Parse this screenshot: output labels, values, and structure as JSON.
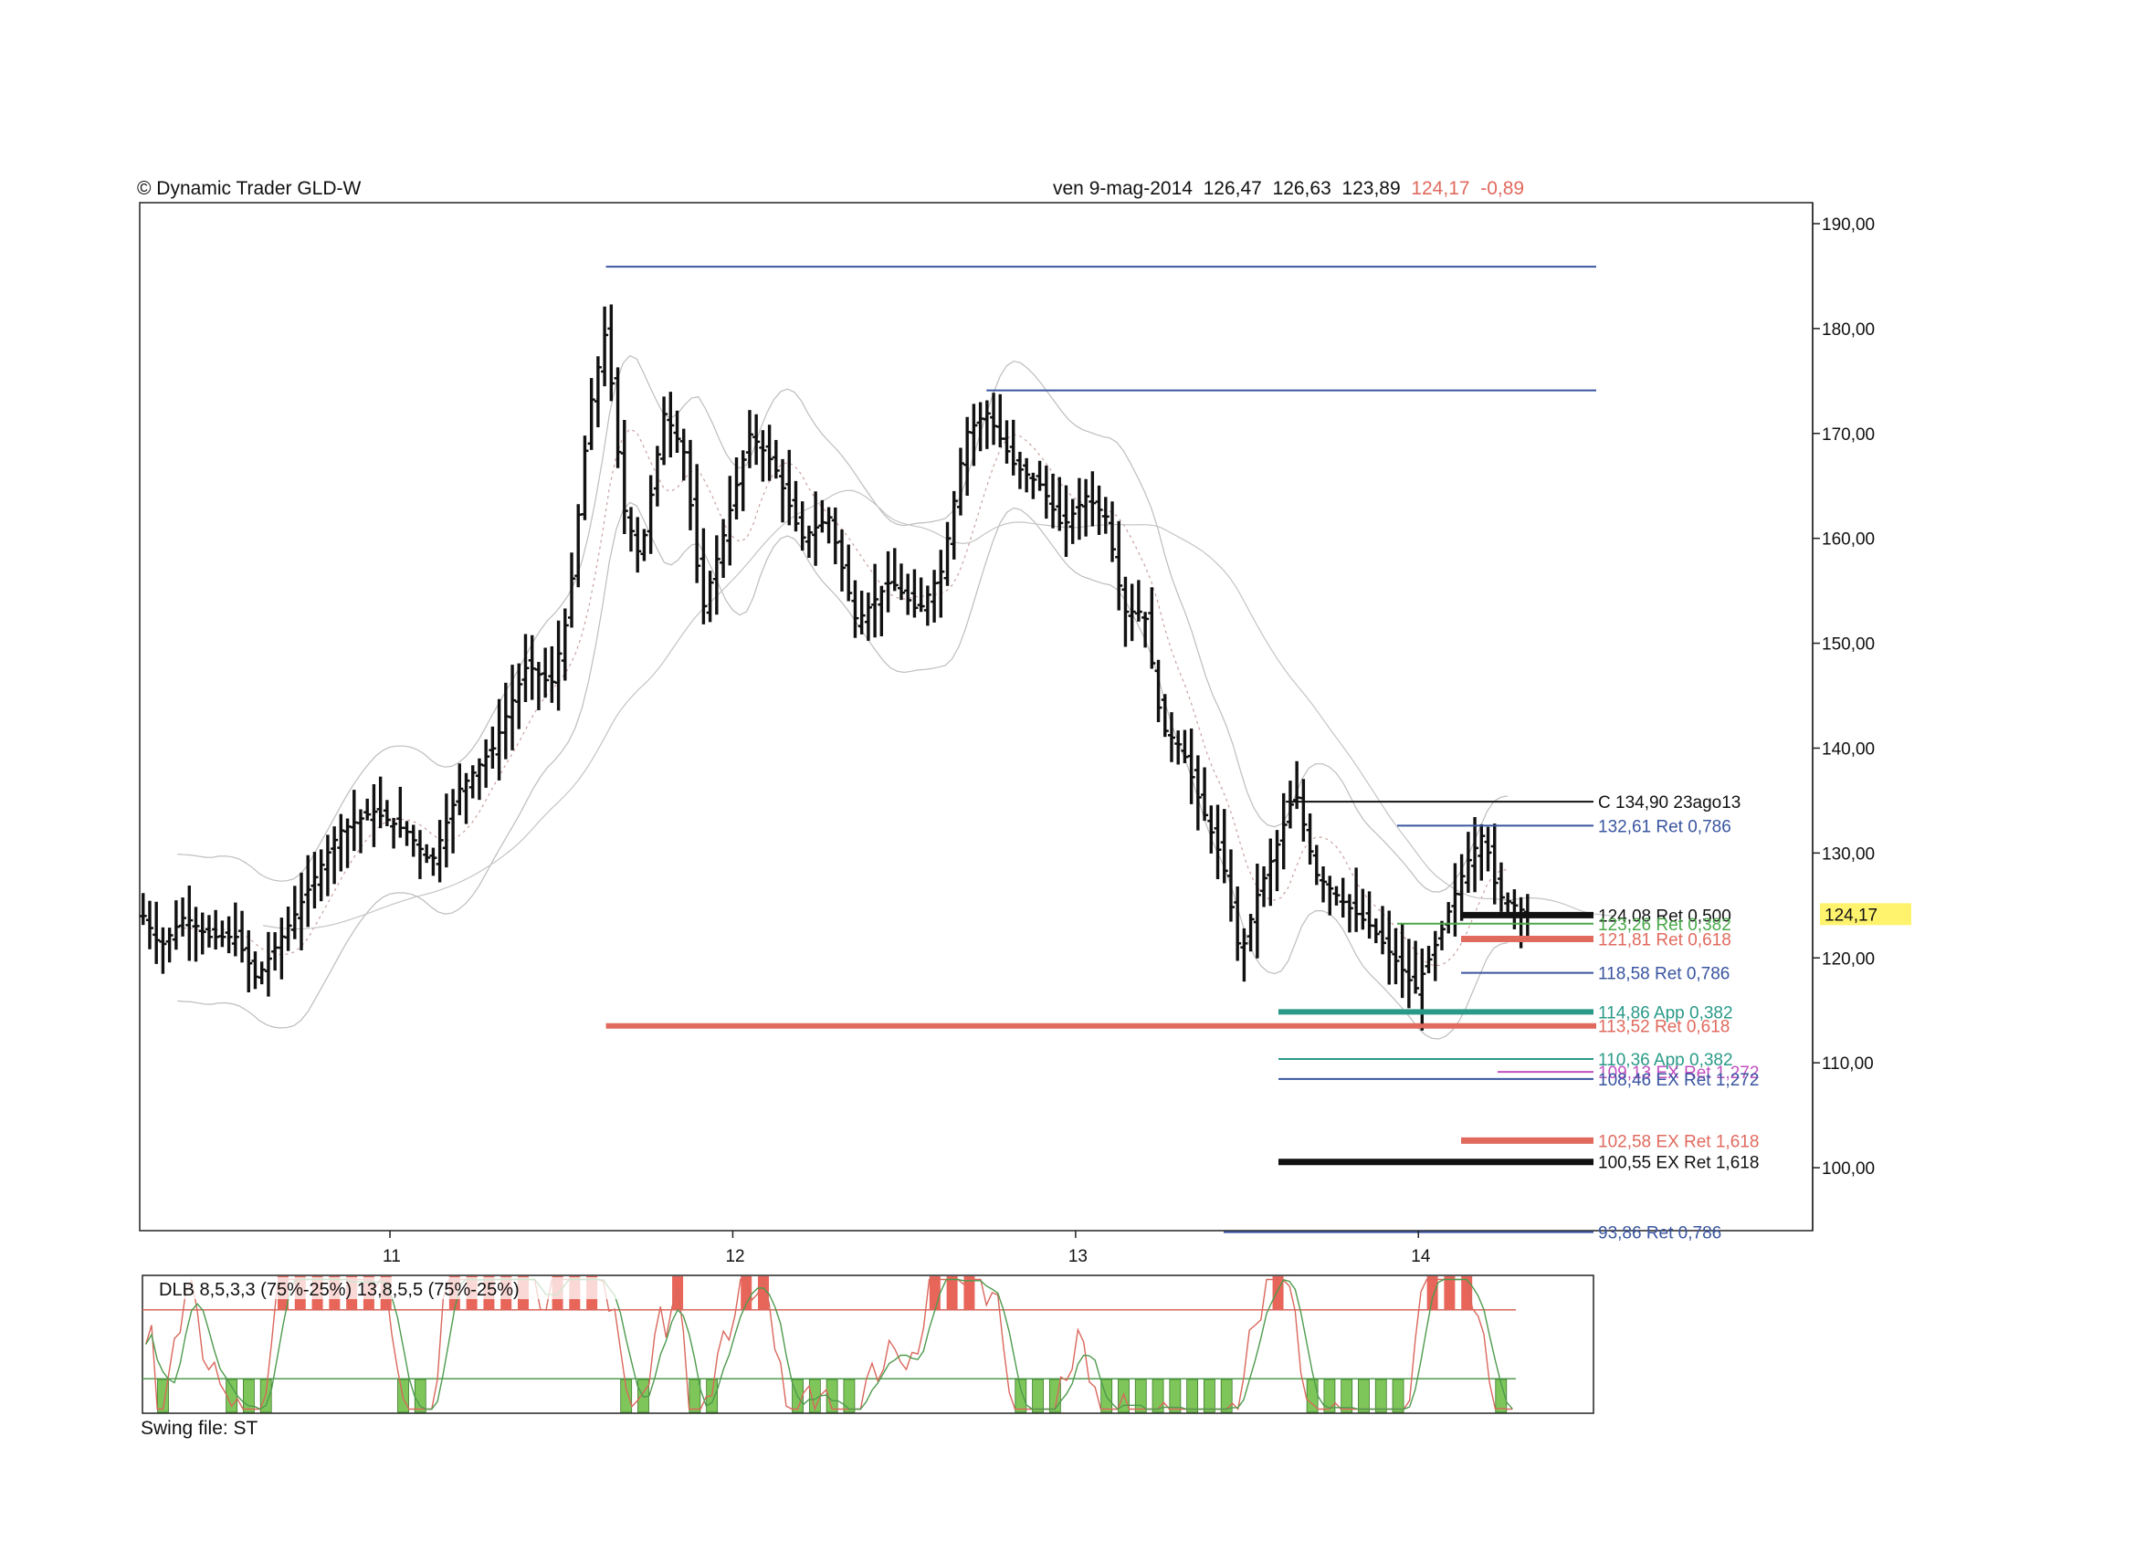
{
  "header": {
    "left": "© Dynamic Trader  GLD-W",
    "date": "ven 9-mag-2014",
    "open": "126,47",
    "high": "126,63",
    "low": "123,89",
    "close": "124,17",
    "change": "-0,89"
  },
  "footer": {
    "swing_file": "Swing file: ST"
  },
  "chart_data": [
    {
      "type": "bar",
      "subtype": "ohlc-weekly",
      "symbol": "GLD-W",
      "ylim": [
        94,
        192
      ],
      "y_ticks": [
        "190,00",
        "180,00",
        "170,00",
        "160,00",
        "150,00",
        "140,00",
        "130,00",
        "120,00",
        "110,00",
        "100,00"
      ],
      "y_tick_values": [
        190,
        180,
        170,
        160,
        150,
        140,
        130,
        120,
        110,
        100
      ],
      "x_ticks": [
        "11",
        "12",
        "13",
        "14"
      ],
      "x_range": [
        2010.27,
        2015.15
      ],
      "x_tick_values": [
        2011,
        2012,
        2013,
        2014
      ],
      "last_price_label": "124,17",
      "last_price": 124.17,
      "price_path": [
        [
          2010.28,
          124
        ],
        [
          2010.33,
          121
        ],
        [
          2010.4,
          124
        ],
        [
          2010.47,
          122
        ],
        [
          2010.55,
          122
        ],
        [
          2010.61,
          118
        ],
        [
          2010.72,
          124
        ],
        [
          2010.85,
          132
        ],
        [
          2010.95,
          134
        ],
        [
          2011.05,
          132
        ],
        [
          2011.12,
          129
        ],
        [
          2011.2,
          136
        ],
        [
          2011.3,
          140
        ],
        [
          2011.4,
          148
        ],
        [
          2011.47,
          146
        ],
        [
          2011.52,
          153
        ],
        [
          2011.58,
          172
        ],
        [
          2011.63,
          180
        ],
        [
          2011.68,
          163
        ],
        [
          2011.73,
          158
        ],
        [
          2011.8,
          172
        ],
        [
          2011.86,
          168
        ],
        [
          2011.91,
          153
        ],
        [
          2011.97,
          160
        ],
        [
          2012.05,
          170
        ],
        [
          2012.12,
          167
        ],
        [
          2012.2,
          160
        ],
        [
          2012.28,
          162
        ],
        [
          2012.36,
          152
        ],
        [
          2012.46,
          156
        ],
        [
          2012.54,
          153
        ],
        [
          2012.61,
          157
        ],
        [
          2012.68,
          170
        ],
        [
          2012.74,
          172
        ],
        [
          2012.82,
          167
        ],
        [
          2012.9,
          165
        ],
        [
          2012.96,
          161
        ],
        [
          2013.03,
          164
        ],
        [
          2013.09,
          162
        ],
        [
          2013.14,
          153
        ],
        [
          2013.2,
          153
        ],
        [
          2013.25,
          142
        ],
        [
          2013.31,
          140
        ],
        [
          2013.36,
          135
        ],
        [
          2013.43,
          129
        ],
        [
          2013.48,
          120
        ],
        [
          2013.53,
          126
        ],
        [
          2013.59,
          131
        ],
        [
          2013.64,
          136
        ],
        [
          2013.7,
          128
        ],
        [
          2013.79,
          125
        ],
        [
          2013.86,
          123
        ],
        [
          2013.95,
          119
        ],
        [
          2013.99,
          117
        ],
        [
          2014.06,
          122
        ],
        [
          2014.14,
          129
        ],
        [
          2014.19,
          132
        ],
        [
          2014.23,
          126
        ],
        [
          2014.28,
          125
        ],
        [
          2014.32,
          124.17
        ]
      ],
      "fib_levels": [
        {
          "label": "C 134,90 23ago13",
          "value": 134.9,
          "color": "#111111"
        },
        {
          "label": "132,61 Ret 0,786",
          "value": 132.61,
          "color": "#3a55a0"
        },
        {
          "label": "124,08 Ret 0,500",
          "value": 124.08,
          "color": "#111111"
        },
        {
          "label": "123,26 Ret 0,382",
          "value": 123.26,
          "color": "#4aa84a"
        },
        {
          "label": "121,81 Ret 0,618",
          "value": 121.81,
          "color": "#e06a5e"
        },
        {
          "label": "118,58 Ret 0,786",
          "value": 118.58,
          "color": "#3a55a0"
        },
        {
          "label": "114,86 App 0,382",
          "value": 114.86,
          "color": "#2a9a88"
        },
        {
          "label": "113,52 Ret 0,618",
          "value": 113.52,
          "color": "#e06a5e"
        },
        {
          "label": "110,36 App 0,382",
          "value": 110.36,
          "color": "#2a9a88"
        },
        {
          "label": "109,13 EX Ret 1,272",
          "value": 109.13,
          "color": "#c050c0"
        },
        {
          "label": "108,46 EX Ret 1,272",
          "value": 108.46,
          "color": "#3a55a0"
        },
        {
          "label": "102,58 EX Ret 1,618",
          "value": 102.58,
          "color": "#e06a5e"
        },
        {
          "label": "100,55 EX Ret 1,618",
          "value": 100.55,
          "color": "#111111"
        },
        {
          "label": "93,86 Ret 0,786",
          "value": 93.86,
          "color": "#3a55a0"
        }
      ],
      "horizontal_lines": [
        {
          "value": 185.9,
          "color": "#3a55a0"
        },
        {
          "value": 174.1,
          "color": "#3a55a0"
        },
        {
          "value": 113.52,
          "color": "#e06a5e"
        }
      ]
    },
    {
      "type": "line",
      "subtype": "oscillator",
      "title": "DLB 8,5,3,3 (75%-25%) 13,8,5,5 (75%-25%)",
      "ylim": [
        0,
        100
      ],
      "upper_band": 75,
      "lower_band": 25,
      "colors": {
        "fast": "#d9675c",
        "slow": "#4e9a4e",
        "overbought": "#e8655a",
        "oversold": "#7fc65a"
      }
    }
  ]
}
